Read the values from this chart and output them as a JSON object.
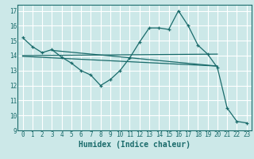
{
  "title": "",
  "xlabel": "Humidex (Indice chaleur)",
  "bg_color": "#cce8e8",
  "grid_color": "#ffffff",
  "line_color": "#1a6b6b",
  "xlim": [
    -0.5,
    23.5
  ],
  "ylim": [
    9,
    17.4
  ],
  "yticks": [
    9,
    10,
    11,
    12,
    13,
    14,
    15,
    16,
    17
  ],
  "xticks": [
    0,
    1,
    2,
    3,
    4,
    5,
    6,
    7,
    8,
    9,
    10,
    11,
    12,
    13,
    14,
    15,
    16,
    17,
    18,
    19,
    20,
    21,
    22,
    23
  ],
  "line1_x": [
    0,
    1,
    2,
    3,
    4,
    5,
    6,
    7,
    8,
    9,
    10,
    11,
    12,
    13,
    14,
    15,
    16,
    17,
    18,
    19,
    20,
    21,
    22,
    23
  ],
  "line1_y": [
    15.2,
    14.6,
    14.2,
    14.4,
    13.9,
    13.5,
    13.0,
    12.7,
    12.0,
    12.4,
    13.0,
    13.85,
    14.9,
    15.85,
    15.85,
    15.75,
    17.0,
    16.0,
    14.7,
    14.1,
    13.2,
    10.5,
    9.6,
    9.5
  ],
  "line2_x": [
    0,
    20
  ],
  "line2_y": [
    14.0,
    14.1
  ],
  "line3_x": [
    0,
    20
  ],
  "line3_y": [
    13.95,
    13.3
  ],
  "line4_x": [
    3,
    20
  ],
  "line4_y": [
    14.35,
    13.3
  ]
}
